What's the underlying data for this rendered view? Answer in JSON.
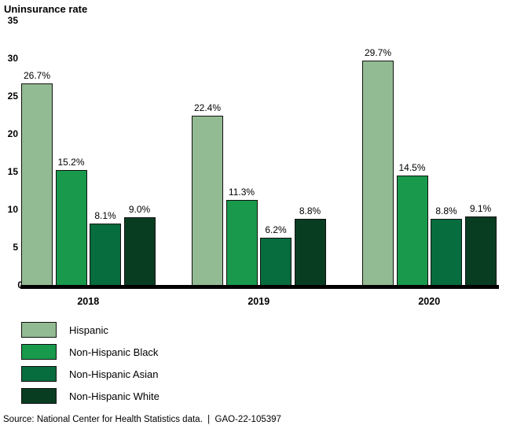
{
  "chart_data": {
    "type": "bar",
    "title": "Uninsurance rate",
    "categories": [
      "2018",
      "2019",
      "2020"
    ],
    "series": [
      {
        "name": "Hispanic",
        "color": "#93BB93",
        "values": [
          26.7,
          22.4,
          29.7
        ]
      },
      {
        "name": "Non-Hispanic Black",
        "color": "#18994B",
        "values": [
          15.2,
          11.3,
          14.5
        ]
      },
      {
        "name": "Non-Hispanic Asian",
        "color": "#076C3E",
        "values": [
          8.1,
          6.2,
          8.8
        ]
      },
      {
        "name": "Non-Hispanic White",
        "color": "#093D22",
        "values": [
          9.0,
          8.8,
          9.1
        ]
      }
    ],
    "value_label_format": "percent_one_decimal",
    "ylim": [
      0,
      35
    ],
    "yticks": [
      0,
      5,
      10,
      15,
      20,
      25,
      30,
      35
    ],
    "grid": false,
    "legend_position": "bottom-left",
    "axis_line_color": "#000000"
  },
  "source_line": "Source: National Center for Health Statistics data.  |  GAO-22-105397"
}
